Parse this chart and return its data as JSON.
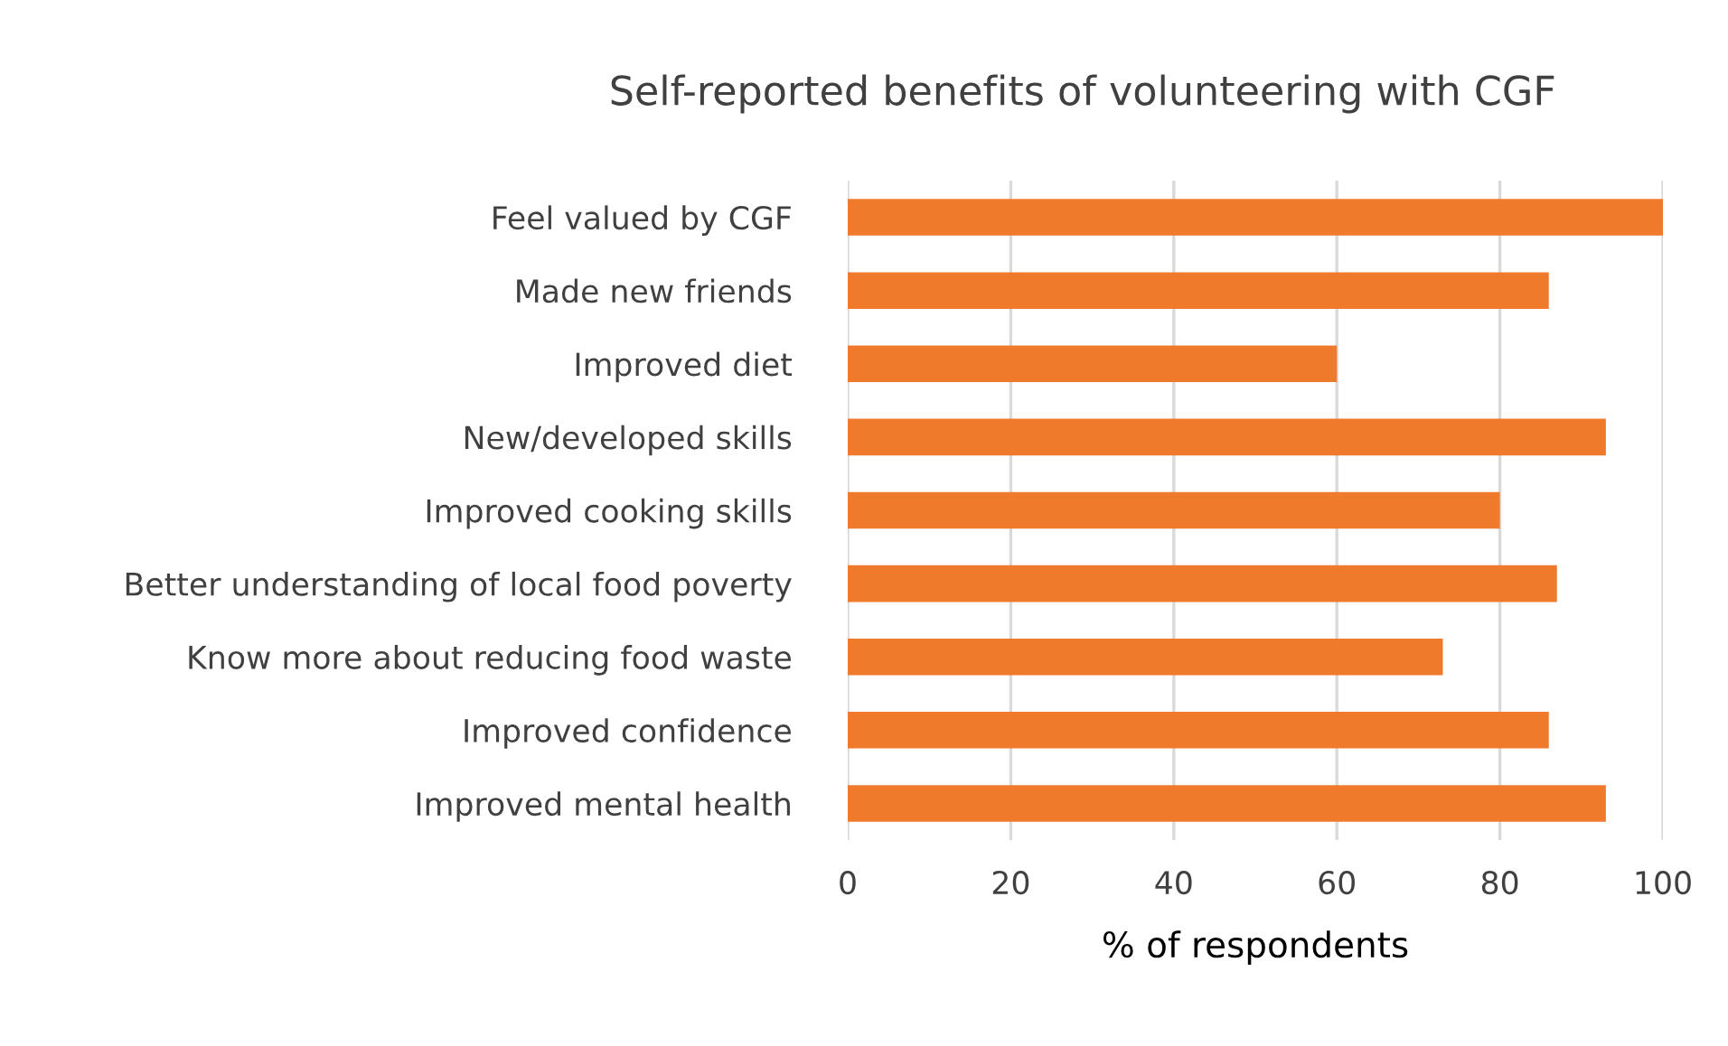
{
  "chart_data": {
    "type": "bar",
    "orientation": "horizontal",
    "title": "Self-reported benefits of volunteering with CGF",
    "xlabel": "% of respondents",
    "categories": [
      "Feel valued by CGF",
      "Made new friends",
      "Improved diet",
      "New/developed skills",
      "Improved cooking skills",
      "Better understanding of local food poverty",
      "Know more about reducing food waste",
      "Improved confidence",
      "Improved mental health"
    ],
    "values": [
      100,
      86,
      60,
      93,
      80,
      87,
      73,
      86,
      93
    ],
    "color": "#f07a2c",
    "xlim": [
      0,
      100
    ],
    "xticks": [
      0,
      20,
      40,
      60,
      80,
      100
    ],
    "grid": "x"
  }
}
